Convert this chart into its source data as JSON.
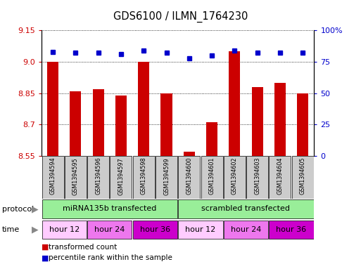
{
  "title": "GDS6100 / ILMN_1764230",
  "samples": [
    "GSM1394594",
    "GSM1394595",
    "GSM1394596",
    "GSM1394597",
    "GSM1394598",
    "GSM1394599",
    "GSM1394600",
    "GSM1394601",
    "GSM1394602",
    "GSM1394603",
    "GSM1394604",
    "GSM1394605"
  ],
  "transformed_count": [
    9.0,
    8.86,
    8.87,
    8.84,
    9.0,
    8.85,
    8.57,
    8.71,
    9.05,
    8.88,
    8.9,
    8.85
  ],
  "percentile_rank": [
    83,
    82,
    82,
    81,
    84,
    82,
    78,
    80,
    84,
    82,
    82,
    82
  ],
  "ymin": 8.55,
  "ymax": 9.15,
  "yticks_left": [
    8.55,
    8.7,
    8.85,
    9.0,
    9.15
  ],
  "yticks_right_pct": [
    0,
    25,
    50,
    75,
    100
  ],
  "bar_color": "#cc0000",
  "dot_color": "#0000cc",
  "sample_box_color": "#cccccc",
  "protocol_color": "#99ee99",
  "time_color_list": [
    "#ffccff",
    "#ee77ee",
    "#cc00cc",
    "#ffccff",
    "#ee77ee",
    "#cc00cc"
  ],
  "legend_count_label": "transformed count",
  "legend_pct_label": "percentile rank within the sample",
  "prot_defs": [
    [
      0,
      5,
      "miRNA135b transfected"
    ],
    [
      6,
      11,
      "scrambled transfected"
    ]
  ],
  "time_defs": [
    [
      0,
      1,
      "hour 12",
      "#ffccff"
    ],
    [
      2,
      3,
      "hour 24",
      "#ee77ee"
    ],
    [
      4,
      5,
      "hour 36",
      "#cc00cc"
    ],
    [
      6,
      7,
      "hour 12",
      "#ffccff"
    ],
    [
      8,
      9,
      "hour 24",
      "#ee77ee"
    ],
    [
      10,
      11,
      "hour 36",
      "#cc00cc"
    ]
  ]
}
